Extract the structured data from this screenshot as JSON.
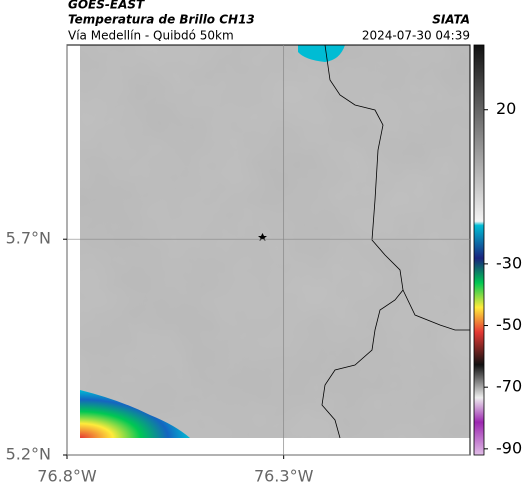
{
  "header": {
    "product": "GOES-EAST",
    "title": "Temperatura de Brillo CH13",
    "subtitle": "Vía Medellín - Quibdó 50km",
    "source": "SIATA",
    "timestamp": "2024-07-30 04:39"
  },
  "map": {
    "xlim": [
      -76.8,
      -75.87
    ],
    "ylim": [
      5.2,
      6.15
    ],
    "xticks": [
      {
        "value": -76.8,
        "label": "76.8°W"
      },
      {
        "value": -76.3,
        "label": "76.3°W"
      }
    ],
    "yticks": [
      {
        "value": 5.2,
        "label": "5.2°N"
      },
      {
        "value": 5.7,
        "label": "5.7°N"
      }
    ]
  },
  "colorbar": {
    "lim": [
      -92,
      41
    ],
    "ticks": [
      20,
      -30,
      -50,
      -70,
      -90
    ]
  }
}
